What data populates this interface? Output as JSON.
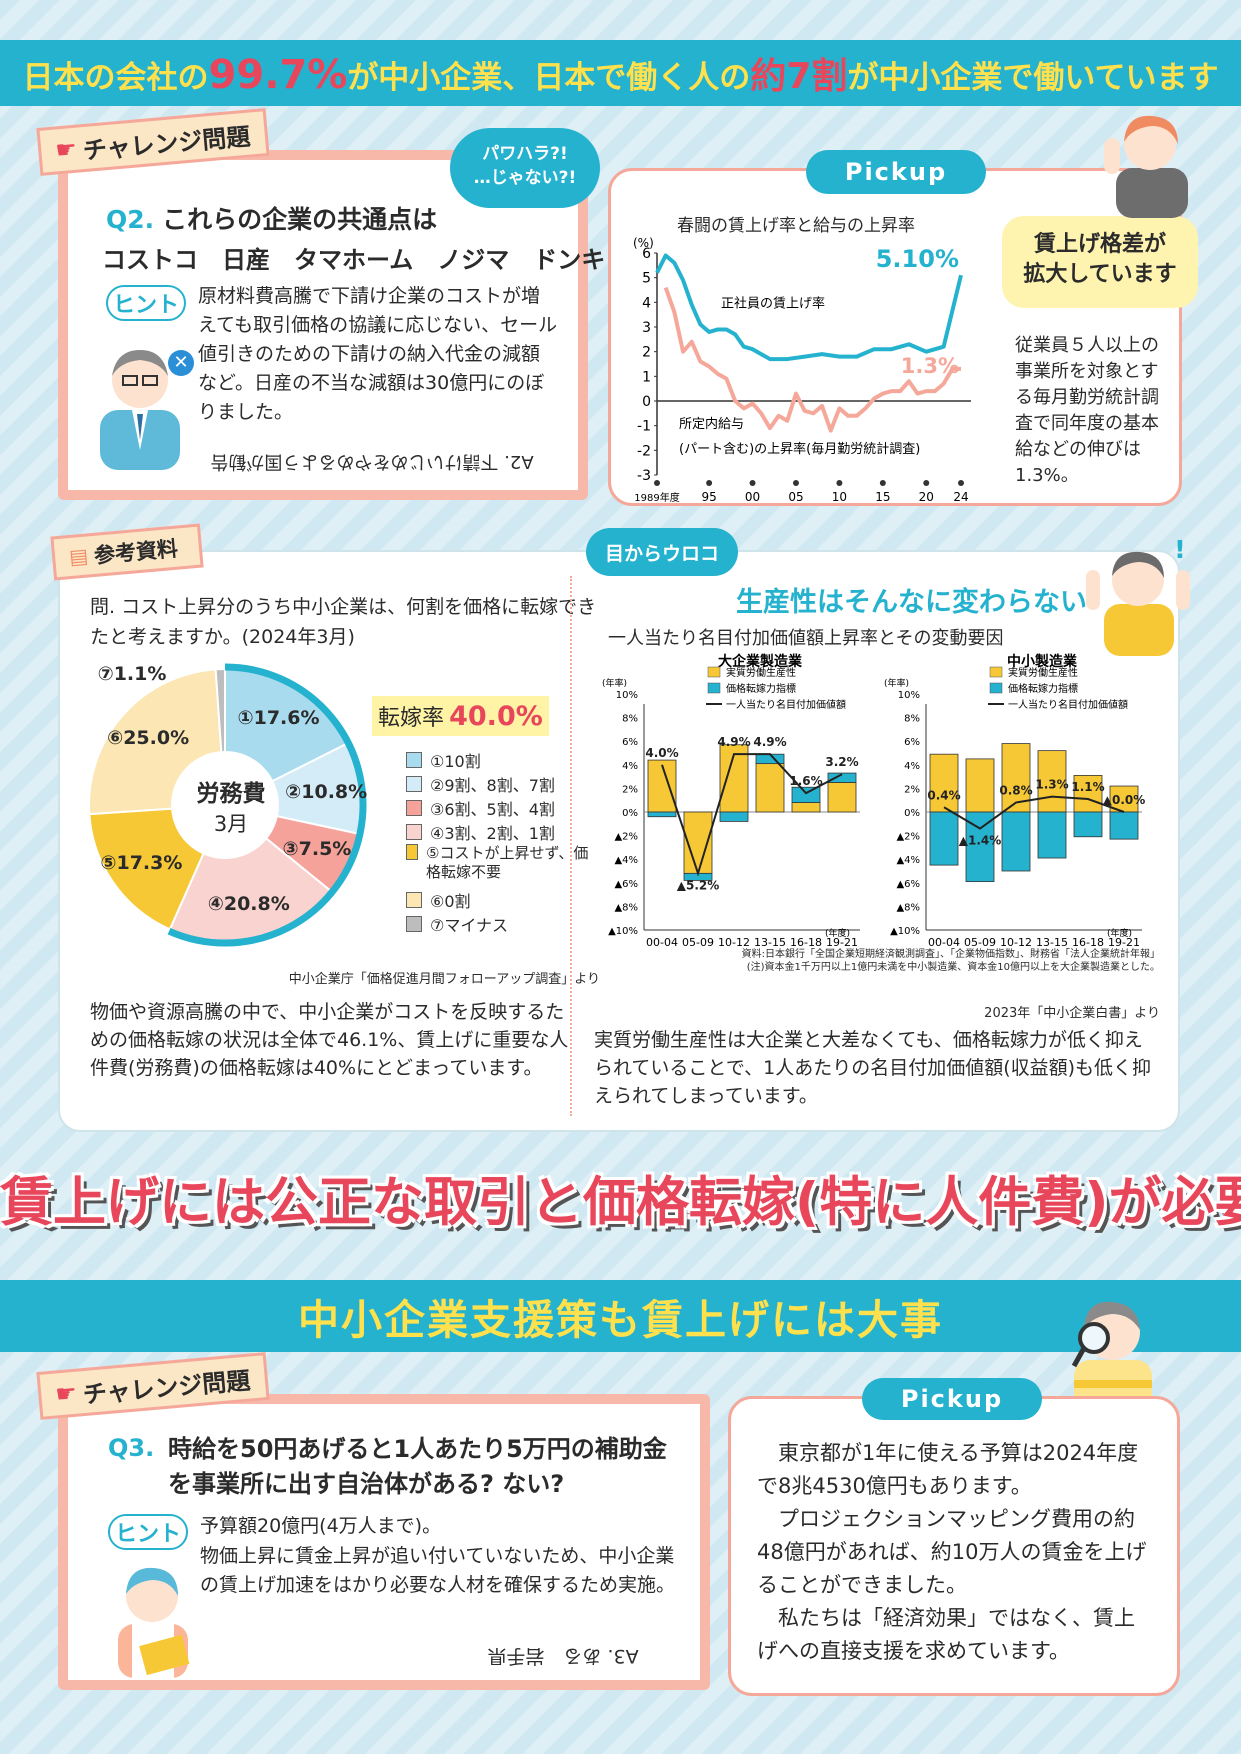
{
  "header": {
    "part1": "日本の会社の",
    "pct": "99.7%",
    "part2": "が中小企業、日本で働く人の",
    "ratio": "約7割",
    "part3": "が中小企業で働いています"
  },
  "challenge1": {
    "tag": "チャレンジ問題",
    "bubble": "パワハラ?!\n…じゃない?!",
    "q_num": "Q2.",
    "q_text": "これらの企業の共通点は",
    "companies": "コストコ　日産　タマホーム　ノジマ　ドンキ",
    "hint_label": "ヒント",
    "hint_text": "原材料費高騰で下請け企業のコストが増えても取引価格の協議に応じない、セール値引きのための下請けの納入代金の減額など。日産の不当な減額は30億円にのぼりました。",
    "answer": "A2. 下請けいじめをやめるよう国が勧告"
  },
  "pickup1": {
    "label": "Pickup",
    "chart_title": "春闘の賃上げ率と給与の上昇率",
    "callout": "賃上げ格差が\n拡大しています",
    "text": "従業員５人以上の事業所を対象とする毎月勤労統計調査で同年度の基本給などの伸びは1.3%。"
  },
  "reference": {
    "tag": "参考資料",
    "question": "問. コスト上昇分のうち中小企業は、何割を価格に転嫁できたと考えますか。(2024年3月)",
    "rate_label": "転嫁率",
    "rate_value": "40.0%",
    "center_title": "労務費",
    "center_sub": "3月",
    "source": "中小企業庁「価格促進月間フォローアップ調査」より",
    "text": "物価や資源高騰の中で、中小企業がコストを反映するための価格転嫁の状況は全体で46.1%、賃上げに重要な人件費(労務費)の価格転嫁は40%にとどまっています。"
  },
  "productivity": {
    "tag": "目からウロコ",
    "headline": "生産性はそんなに変わらない",
    "subtitle": "一人当たり名目付加価値額上昇率とその変動要因",
    "source": "資料:日本銀行「全国企業短期経済観測調査」、「企業物価指数」、財務省「法人企業統計年報」\n(注)資本金1千万円以上1億円未満を中小製造業、資本金10億円以上を大企業製造業とした。",
    "source2": "2023年「中小企業白書」より",
    "text": "実質労働生産性は大企業と大差なくても、価格転嫁力が低く抑えられていることで、1人あたりの名目付加価値額(収益額)も低く抑えられてしまっています。"
  },
  "slogan": "賃上げには公正な取引と価格転嫁(特に人件費)が必要",
  "band2": "中小企業支援策も賃上げには大事",
  "challenge2": {
    "tag": "チャレンジ問題",
    "q_num": "Q3.",
    "q_text": "時給を50円あげると1人あたり5万円の補助金を事業所に出す自治体がある? ない?",
    "hint_label": "ヒント",
    "hint_text1": "予算額20億円(4万人まで)。",
    "hint_text2": "物価上昇に賃金上昇が追い付いていないため、中小企業の賃上げ加速をはかり必要な人材を確保するため実施。",
    "answer": "A3. ある　岩手県"
  },
  "pickup2": {
    "label": "Pickup",
    "p1": "東京都が1年に使える予算は2024年度で8兆4530億円もあります。",
    "p2": "プロジェクションマッピング費用の約48億円があれば、約10万人の賃金を上げることができました。",
    "p3": "私たちは「経済効果」ではなく、賃上げへの直接支援を求めています。"
  },
  "colors": {
    "accent": "#25b2cf",
    "pink": "#f7b7a9",
    "yellow": "#ffe14d",
    "red": "#e8465b"
  },
  "chart_data": [
    {
      "type": "line",
      "title": "春闘の賃上げ率と給与の上昇率",
      "ylabel": "(%)",
      "ylim": [
        -3,
        6
      ],
      "yticks": [
        "6",
        "5",
        "4",
        "3",
        "2",
        "1",
        "0",
        "-1",
        "-2",
        "-3"
      ],
      "xticks": [
        "1989年度",
        "95",
        "00",
        "05",
        "10",
        "15",
        "20",
        "24"
      ],
      "series": [
        {
          "name": "正社員の賃上げ率",
          "end_label": "5.10%",
          "x": [
            1989,
            1990,
            1991,
            1992,
            1993,
            1994,
            1995,
            1996,
            1997,
            1998,
            1999,
            2000,
            2002,
            2004,
            2006,
            2008,
            2010,
            2012,
            2014,
            2016,
            2018,
            2020,
            2022,
            2024
          ],
          "values": [
            5.2,
            5.9,
            5.6,
            4.9,
            3.9,
            3.1,
            2.8,
            2.9,
            2.9,
            2.7,
            2.2,
            2.1,
            1.7,
            1.7,
            1.8,
            1.9,
            1.8,
            1.8,
            2.1,
            2.1,
            2.3,
            2.0,
            2.2,
            5.1
          ]
        },
        {
          "name": "所定内給与(パート含む)の上昇率(毎月勤労統計調査)",
          "end_label": "1.3%",
          "x": [
            1990,
            1991,
            1992,
            1993,
            1994,
            1995,
            1996,
            1997,
            1998,
            1999,
            2000,
            2001,
            2002,
            2003,
            2004,
            2005,
            2006,
            2007,
            2008,
            2009,
            2010,
            2011,
            2012,
            2013,
            2014,
            2015,
            2016,
            2017,
            2018,
            2019,
            2020,
            2021,
            2022,
            2023,
            2024
          ],
          "values": [
            4.6,
            3.6,
            2.0,
            2.4,
            1.6,
            1.4,
            1.1,
            0.9,
            0.0,
            -0.3,
            -0.1,
            -0.5,
            -1.1,
            -0.6,
            -0.8,
            0.3,
            -0.4,
            -0.5,
            -0.2,
            -1.2,
            -0.3,
            -0.6,
            -0.6,
            -0.3,
            0.1,
            0.3,
            0.4,
            0.4,
            0.8,
            0.3,
            0.4,
            0.4,
            0.7,
            1.3,
            1.3
          ]
        }
      ]
    },
    {
      "type": "pie",
      "categories": [
        "①10割",
        "②9割、8割、7割",
        "③6割、5割、4割",
        "④3割、2割、1割",
        "⑤コストが上昇せず、価格転嫁不要",
        "⑥0割",
        "⑦マイナス"
      ],
      "values": [
        17.6,
        10.8,
        7.5,
        20.8,
        17.3,
        25.0,
        1.1
      ],
      "labels": [
        "①17.6%",
        "②10.8%",
        "③7.5%",
        "④20.8%",
        "⑤17.3%",
        "⑥25.0%",
        "⑦1.1%"
      ],
      "colors": [
        "#a9dbef",
        "#d4ecf8",
        "#f5a39a",
        "#f9d3cf",
        "#f7c836",
        "#fbe6b4",
        "#bdbdbd"
      ]
    },
    {
      "type": "bar",
      "title": "大企業製造業",
      "categories": [
        "00-04",
        "05-09",
        "10-12",
        "13-15",
        "16-18",
        "19-21"
      ],
      "ylim": [
        -10,
        10
      ],
      "yticks": [
        "10%",
        "8%",
        "6%",
        "4%",
        "2%",
        "0%",
        "▲2%",
        "▲4%",
        "▲6%",
        "▲8%",
        "▲10%"
      ],
      "y_unit": "(年率)",
      "x_unit": "(年度)",
      "legend": [
        "実質労働生産性",
        "価格転嫁力指標",
        "一人当たり名目付加価値額"
      ],
      "series": [
        {
          "name": "実質労働生産性",
          "values": [
            4.4,
            -5.2,
            5.7,
            4.1,
            0.8,
            2.5
          ]
        },
        {
          "name": "価格転嫁力指標",
          "values": [
            -0.4,
            -0.6,
            -0.8,
            0.8,
            1.3,
            0.8
          ]
        },
        {
          "name": "一人当たり名目付加価値額",
          "values": [
            4.0,
            -5.2,
            4.9,
            4.9,
            1.6,
            3.2
          ]
        }
      ],
      "data_labels": [
        "4.0%",
        "▲5.2%",
        "4.9%",
        "4.9%",
        "1.6%",
        "3.2%"
      ]
    },
    {
      "type": "bar",
      "title": "中小製造業",
      "categories": [
        "00-04",
        "05-09",
        "10-12",
        "13-15",
        "16-18",
        "19-21"
      ],
      "ylim": [
        -10,
        10
      ],
      "yticks": [
        "10%",
        "8%",
        "6%",
        "4%",
        "2%",
        "0%",
        "▲2%",
        "▲4%",
        "▲6%",
        "▲8%",
        "▲10%"
      ],
      "y_unit": "(年率)",
      "x_unit": "(年度)",
      "legend": [
        "実質労働生産性",
        "価格転嫁力指標",
        "一人当たり名目付加価値額"
      ],
      "series": [
        {
          "name": "実質労働生産性",
          "values": [
            4.9,
            4.5,
            5.8,
            5.2,
            3.1,
            2.2
          ]
        },
        {
          "name": "価格転嫁力指標",
          "values": [
            -4.5,
            -5.9,
            -5.0,
            -3.9,
            -2.1,
            -2.3
          ]
        },
        {
          "name": "一人当たり名目付加価値額",
          "values": [
            0.4,
            -1.4,
            0.8,
            1.3,
            1.1,
            0.0
          ]
        }
      ],
      "data_labels": [
        "0.4%",
        "▲1.4%",
        "0.8%",
        "1.3%",
        "1.1%",
        "▲0.0%"
      ]
    }
  ]
}
